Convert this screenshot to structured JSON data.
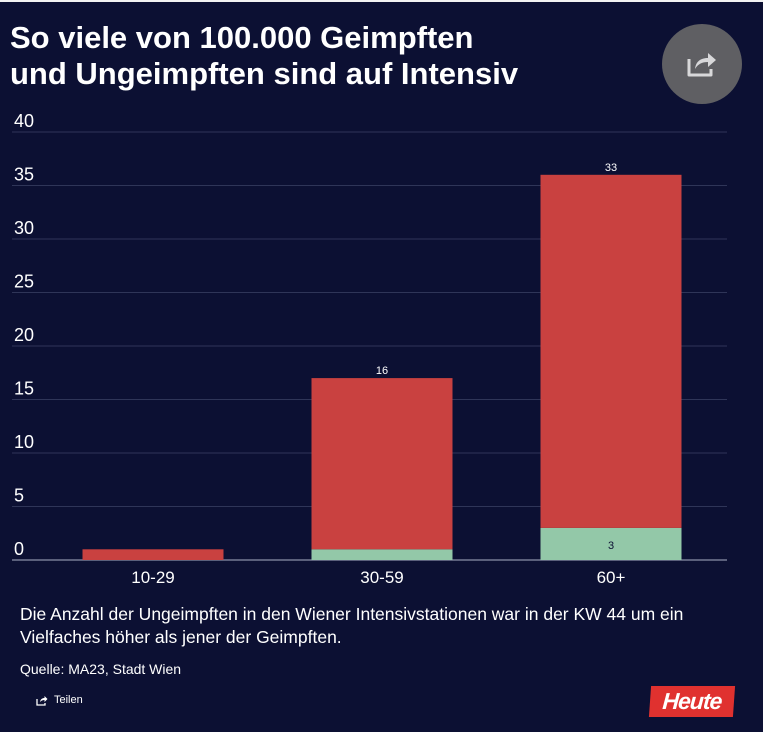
{
  "header": {
    "title_line1": "So viele von 100.000 Geimpften",
    "title_line2": "und Ungeimpften sind auf Intensiv"
  },
  "share_button": {
    "icon": "share-icon"
  },
  "chart_data": {
    "type": "bar",
    "stacked": true,
    "categories": [
      "10-29",
      "30-59",
      "60+"
    ],
    "series": [
      {
        "values": [
          0,
          1,
          3
        ],
        "labels": [
          "",
          "",
          "3"
        ],
        "color": "#93c8a8"
      },
      {
        "values": [
          1,
          16,
          33
        ],
        "labels": [
          "",
          "16",
          "33"
        ],
        "color": "#c94140"
      }
    ],
    "ylim": [
      0,
      40
    ],
    "yticks": [
      "0",
      "5",
      "10",
      "15",
      "20",
      "25",
      "30",
      "35",
      "40"
    ],
    "grid": true,
    "gridColor": "#2f3558"
  },
  "caption": "Die Anzahl der Ungeimpften in den Wiener  Intensivstationen war in der KW 44 um ein Vielfaches höher als jener der Geimpften.",
  "source": "Quelle: MA23, Stadt Wien",
  "share_link": {
    "label": "Teilen",
    "icon": "share-icon"
  },
  "logo": {
    "text": "Heute",
    "color": "#e0312f"
  }
}
